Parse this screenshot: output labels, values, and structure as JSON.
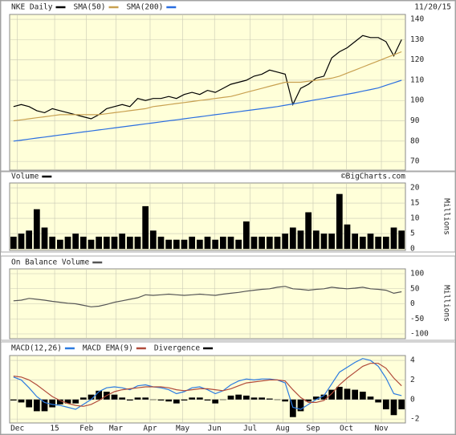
{
  "chart_data": [
    {
      "type": "line",
      "date": "11/20/15",
      "ylim": [
        65.7,
        142.4
      ],
      "yticks": [
        70,
        80,
        90,
        100,
        110,
        120,
        130,
        140
      ],
      "grid": true,
      "series": [
        {
          "name": "NKE Daily",
          "color": "#000000",
          "values": [
            97,
            98,
            97,
            95,
            94,
            96,
            95,
            94,
            93,
            92,
            91,
            93,
            96,
            97,
            98,
            97,
            101,
            100,
            101,
            101,
            102,
            101,
            103,
            104,
            103,
            105,
            104,
            106,
            108,
            109,
            110,
            112,
            113,
            115,
            114,
            113,
            98,
            106,
            108,
            111,
            112,
            121,
            124,
            126,
            129,
            132,
            131,
            131,
            129,
            122,
            130
          ]
        },
        {
          "name": "SMA(50)",
          "color": "#c8a050",
          "values": [
            90,
            90.5,
            91,
            91.5,
            92,
            92.5,
            93,
            93,
            93,
            93,
            93,
            93,
            93.5,
            94,
            94.5,
            95,
            95.5,
            96,
            97,
            97.5,
            98,
            98.5,
            99,
            99.5,
            100,
            100.5,
            101,
            101.5,
            102,
            103,
            104,
            105,
            106,
            107,
            108,
            109,
            109,
            109,
            109.5,
            110,
            110.5,
            111,
            112,
            113.5,
            115,
            116.5,
            118,
            119.5,
            121,
            122.5,
            124
          ]
        },
        {
          "name": "SMA(200)",
          "color": "#2a6ee0",
          "values": [
            80,
            80.5,
            81,
            81.5,
            82,
            82.5,
            83,
            83.5,
            84,
            84.5,
            85,
            85.5,
            86,
            86.5,
            87,
            87.5,
            88,
            88.5,
            89,
            89.5,
            90,
            90.5,
            91,
            91.5,
            92,
            92.5,
            93,
            93.5,
            94,
            94.5,
            95,
            95.5,
            96,
            96.5,
            97,
            97.7,
            98.3,
            99,
            99.7,
            100.4,
            101,
            101.7,
            102.4,
            103.1,
            103.8,
            104.6,
            105.4,
            106.2,
            107.5,
            108.7,
            110
          ]
        }
      ]
    },
    {
      "type": "bar",
      "credit": "©BigCharts.com",
      "y_axis_label": "Millions",
      "ylim": [
        -0.5,
        21.6
      ],
      "yticks": [
        0,
        5,
        10,
        15,
        20
      ],
      "grid": true,
      "series": [
        {
          "name": "Volume",
          "color": "#000000",
          "values": [
            4,
            5,
            6,
            13,
            7,
            4,
            3,
            4,
            5,
            4,
            3,
            4,
            4,
            4,
            5,
            4,
            4,
            14,
            6,
            4,
            3,
            3,
            3,
            4,
            3,
            4,
            3,
            4,
            4,
            3,
            9,
            4,
            4,
            4,
            4,
            5,
            7,
            6,
            12,
            6,
            5,
            5,
            18,
            8,
            5,
            4,
            5,
            4,
            4,
            7,
            6
          ]
        }
      ]
    },
    {
      "type": "line",
      "y_axis_label": "Millions",
      "ylim": [
        -116,
        116
      ],
      "yticks": [
        -100,
        -50,
        0,
        50,
        100
      ],
      "grid": true,
      "series": [
        {
          "name": "On Balance Volume",
          "color": "#555555",
          "values": [
            10,
            12,
            18,
            15,
            12,
            8,
            5,
            2,
            0,
            -5,
            -10,
            -8,
            -2,
            5,
            10,
            15,
            20,
            30,
            28,
            30,
            32,
            30,
            28,
            30,
            32,
            30,
            28,
            32,
            35,
            38,
            42,
            45,
            48,
            50,
            55,
            58,
            50,
            48,
            45,
            48,
            50,
            55,
            52,
            50,
            52,
            55,
            50,
            48,
            45,
            35,
            40
          ]
        }
      ]
    },
    {
      "type": "line",
      "ylim": [
        -2.4,
        4.5
      ],
      "yticks": [
        -2,
        0,
        2,
        4
      ],
      "grid": true,
      "xlim": [
        0,
        51
      ],
      "xticks": [
        {
          "value": 1.0,
          "label": "Dec"
        },
        {
          "value": 5.8,
          "label": "15"
        },
        {
          "value": 9.9,
          "label": "Feb"
        },
        {
          "value": 13.7,
          "label": "Mar"
        },
        {
          "value": 18.1,
          "label": "Apr"
        },
        {
          "value": 22.3,
          "label": "May"
        },
        {
          "value": 26.4,
          "label": "Jun"
        },
        {
          "value": 31.0,
          "label": "Jul"
        },
        {
          "value": 35.2,
          "label": "Aug"
        },
        {
          "value": 39.1,
          "label": "Sep"
        },
        {
          "value": 43.4,
          "label": "Oct"
        },
        {
          "value": 47.9,
          "label": "Nov"
        }
      ],
      "series": [
        {
          "name": "MACD(12,26)",
          "color": "#2a7ae0",
          "values": [
            2.3,
            2.0,
            1.2,
            0.3,
            -0.3,
            -0.5,
            -0.6,
            -0.8,
            -1.0,
            -0.5,
            0.0,
            0.8,
            1.2,
            1.3,
            1.2,
            1.0,
            1.4,
            1.5,
            1.3,
            1.2,
            1.0,
            0.6,
            0.8,
            1.2,
            1.3,
            1.0,
            0.6,
            0.9,
            1.5,
            1.9,
            2.1,
            2.0,
            2.1,
            2.1,
            2.0,
            1.7,
            -0.8,
            -1.0,
            -0.5,
            0.0,
            0.4,
            1.6,
            2.8,
            3.3,
            3.8,
            4.2,
            4.0,
            3.4,
            2.2,
            0.6,
            0.4
          ]
        },
        {
          "name": "MACD EMA(9)",
          "color": "#b04a3a",
          "values": [
            2.4,
            2.3,
            2.0,
            1.5,
            0.9,
            0.3,
            -0.1,
            -0.4,
            -0.6,
            -0.7,
            -0.5,
            -0.1,
            0.4,
            0.8,
            1.0,
            1.1,
            1.2,
            1.3,
            1.3,
            1.3,
            1.2,
            1.0,
            0.9,
            1.0,
            1.1,
            1.1,
            1.0,
            0.9,
            1.1,
            1.4,
            1.7,
            1.8,
            1.9,
            2.0,
            2.0,
            1.9,
            1.0,
            0.2,
            -0.3,
            -0.3,
            -0.1,
            0.6,
            1.5,
            2.2,
            2.8,
            3.4,
            3.7,
            3.7,
            3.2,
            2.2,
            1.4
          ]
        },
        {
          "name": "Divergence",
          "color": "#000000",
          "type": "bar",
          "values": [
            -0.1,
            -0.3,
            -0.8,
            -1.2,
            -1.2,
            -0.8,
            -0.5,
            -0.4,
            -0.4,
            0.2,
            0.5,
            0.9,
            0.8,
            0.5,
            0.2,
            -0.1,
            0.2,
            0.2,
            0,
            -0.1,
            -0.2,
            -0.4,
            -0.1,
            0.2,
            0.2,
            -0.1,
            -0.4,
            0,
            0.4,
            0.5,
            0.4,
            0.2,
            0.2,
            0.1,
            0,
            -0.2,
            -1.8,
            -1.2,
            -0.2,
            0.3,
            0.5,
            1.0,
            1.3,
            1.1,
            1.0,
            0.8,
            0.3,
            -0.3,
            -1.0,
            -1.6,
            -1.0
          ]
        }
      ]
    }
  ]
}
